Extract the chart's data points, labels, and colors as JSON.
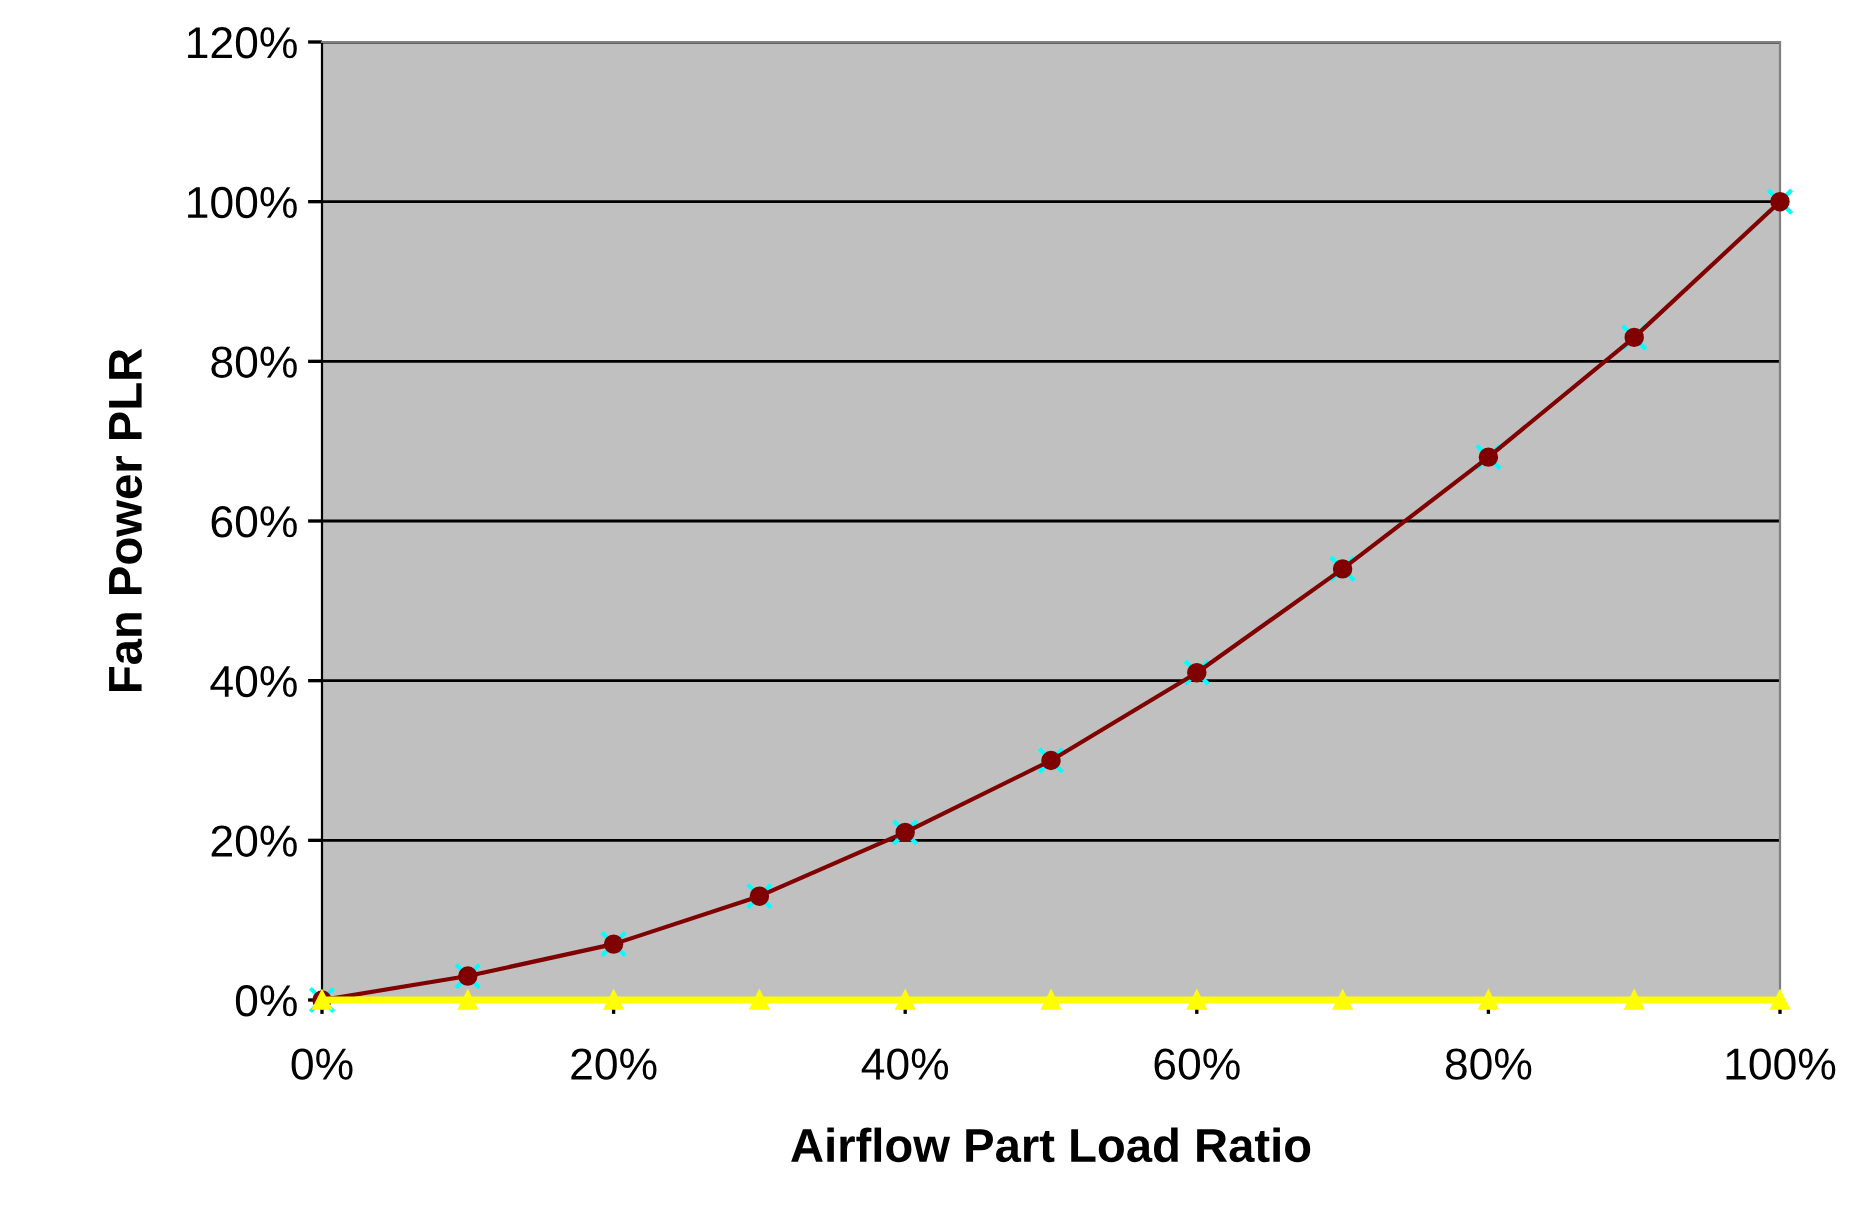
{
  "chart_data": {
    "type": "line",
    "xlabel": "Airflow Part Load Ratio",
    "ylabel": "Fan Power PLR",
    "x": [
      0,
      10,
      20,
      30,
      40,
      50,
      60,
      70,
      80,
      90,
      100
    ],
    "series": [
      {
        "type": "scatter",
        "marker": "cross",
        "color": "#00ffff",
        "values": [
          0,
          3,
          7,
          13,
          21,
          30,
          41,
          54,
          68,
          83,
          100
        ]
      },
      {
        "marker": "circle",
        "color": "#800000",
        "values": [
          0,
          3,
          7,
          13,
          21,
          30,
          41,
          54,
          68,
          83,
          100
        ]
      },
      {
        "marker": "triangle",
        "color": "#ffff00",
        "values": [
          0,
          0,
          0,
          0,
          0,
          0,
          0,
          0,
          0,
          0,
          0
        ]
      }
    ],
    "xlim": [
      0,
      100
    ],
    "ylim": [
      0,
      120
    ],
    "xticks": [
      {
        "value": 0,
        "label": "0%"
      },
      {
        "value": 20,
        "label": "20%"
      },
      {
        "value": 40,
        "label": "40%"
      },
      {
        "value": 60,
        "label": "60%"
      },
      {
        "value": 80,
        "label": "80%"
      },
      {
        "value": 100,
        "label": "100%"
      }
    ],
    "yticks": [
      {
        "value": 0,
        "label": "0%"
      },
      {
        "value": 20,
        "label": "20%"
      },
      {
        "value": 40,
        "label": "40%"
      },
      {
        "value": 60,
        "label": "60%"
      },
      {
        "value": 80,
        "label": "80%"
      },
      {
        "value": 100,
        "label": "100%"
      },
      {
        "value": 120,
        "label": "120%"
      }
    ],
    "grid": "y",
    "legend": false
  }
}
